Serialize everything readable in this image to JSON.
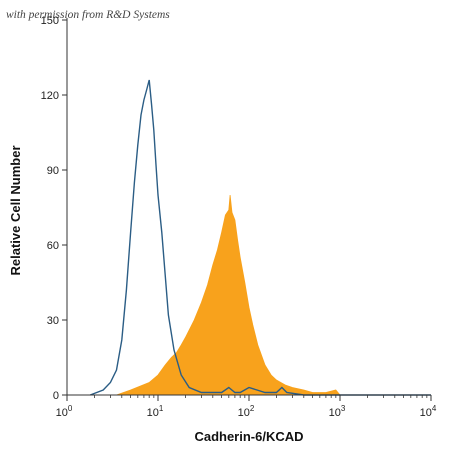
{
  "watermark": "with permission from R&D Systems",
  "chart_data": {
    "type": "area",
    "title": "",
    "xlabel": "Cadherin-6/KCAD",
    "ylabel": "Relative Cell Number",
    "x_scale": "log",
    "xlim": [
      1,
      10000
    ],
    "ylim": [
      0,
      150
    ],
    "y_ticks": [
      0,
      30,
      60,
      90,
      120,
      150
    ],
    "x_ticks": [
      {
        "value": 1,
        "base": "10",
        "exp": "0"
      },
      {
        "value": 10,
        "base": "10",
        "exp": "1"
      },
      {
        "value": 100,
        "base": "10",
        "exp": "2"
      },
      {
        "value": 1000,
        "base": "10",
        "exp": "3"
      },
      {
        "value": 10000,
        "base": "10",
        "exp": "4"
      }
    ],
    "grid": false,
    "legend": "none",
    "series": [
      {
        "style": "outline",
        "color": "#2b5d85",
        "x": [
          1.8,
          2.5,
          3,
          3.5,
          4,
          4.5,
          5,
          5.5,
          6,
          6.5,
          7,
          7.5,
          8,
          8.5,
          9,
          9.5,
          10,
          11,
          12,
          13,
          15,
          18,
          22,
          30,
          40,
          50,
          60,
          70,
          80,
          100,
          150,
          200,
          230,
          260,
          400,
          1000,
          10000
        ],
        "y": [
          0,
          2,
          5,
          10,
          22,
          42,
          65,
          85,
          100,
          112,
          118,
          122,
          126,
          116,
          106,
          92,
          80,
          65,
          48,
          32,
          18,
          8,
          3,
          1,
          1,
          1,
          3,
          1,
          1,
          3,
          1,
          1,
          3,
          1,
          0,
          0,
          0
        ]
      },
      {
        "style": "filled",
        "color": "#f8a21c",
        "x": [
          3.5,
          5,
          8,
          10,
          12,
          14,
          16,
          18,
          20,
          25,
          30,
          35,
          40,
          45,
          50,
          55,
          60,
          62,
          65,
          70,
          75,
          80,
          90,
          100,
          110,
          125,
          150,
          175,
          200,
          250,
          300,
          400,
          500,
          700,
          900,
          1000,
          10000
        ],
        "y": [
          0,
          2,
          5,
          8,
          12,
          15,
          17,
          20,
          23,
          30,
          37,
          44,
          52,
          58,
          65,
          72,
          74,
          80,
          73,
          70,
          62,
          55,
          45,
          35,
          28,
          20,
          12,
          8,
          6,
          4,
          3,
          2,
          1,
          1,
          2,
          0,
          0
        ]
      }
    ]
  }
}
